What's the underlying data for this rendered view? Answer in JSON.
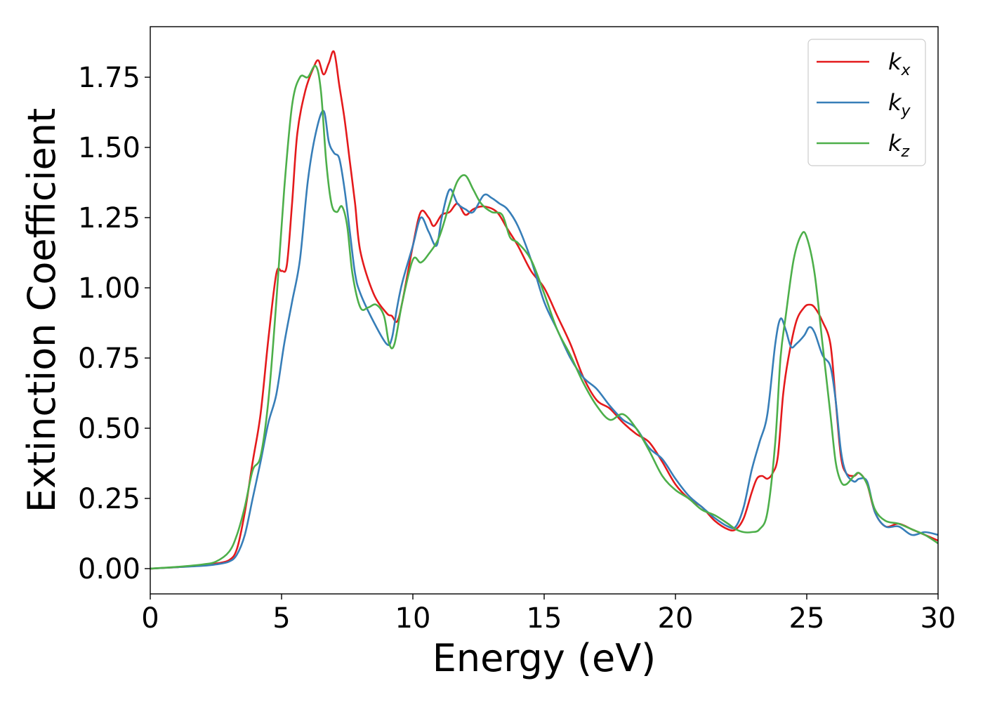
{
  "chart_data": {
    "type": "line",
    "xlabel": "Energy (eV)",
    "ylabel": "Extinction Coefficient",
    "xlim": [
      0,
      30
    ],
    "ylim": [
      -0.09,
      1.93
    ],
    "xticks": [
      0,
      5,
      10,
      15,
      20,
      25,
      30
    ],
    "xtick_labels": [
      "0",
      "5",
      "10",
      "15",
      "20",
      "25",
      "30"
    ],
    "yticks": [
      0.0,
      0.25,
      0.5,
      0.75,
      1.0,
      1.25,
      1.5,
      1.75
    ],
    "ytick_labels": [
      "0.00",
      "0.25",
      "0.50",
      "0.75",
      "1.00",
      "1.25",
      "1.50",
      "1.75"
    ],
    "grid": false,
    "legend_position": "top-right",
    "series": [
      {
        "name": "k",
        "subscript": "x",
        "color": "#e41a1c",
        "x": [
          0,
          1,
          2,
          2.5,
          3,
          3.3,
          3.6,
          3.9,
          4.2,
          4.5,
          4.8,
          5.0,
          5.2,
          5.4,
          5.6,
          5.9,
          6.2,
          6.4,
          6.6,
          6.8,
          7.0,
          7.2,
          7.4,
          7.6,
          7.8,
          8.0,
          8.5,
          9.0,
          9.2,
          9.4,
          9.6,
          10.0,
          10.3,
          10.6,
          10.8,
          11.1,
          11.4,
          11.7,
          12.0,
          12.3,
          12.7,
          13.2,
          13.6,
          14.0,
          14.5,
          15.0,
          15.5,
          16.0,
          16.5,
          17.0,
          17.5,
          18.0,
          18.5,
          19.0,
          19.5,
          20.0,
          20.5,
          21.0,
          21.5,
          22.0,
          22.3,
          22.6,
          22.9,
          23.1,
          23.3,
          23.5,
          23.7,
          23.9,
          24.1,
          24.3,
          24.6,
          24.9,
          25.1,
          25.3,
          25.6,
          25.9,
          26.1,
          26.3,
          26.5,
          26.8,
          27.0,
          27.3,
          27.6,
          28.0,
          28.5,
          29.0,
          29.5,
          30.0
        ],
        "values": [
          0.0,
          0.005,
          0.012,
          0.018,
          0.03,
          0.07,
          0.2,
          0.38,
          0.55,
          0.82,
          1.05,
          1.06,
          1.08,
          1.3,
          1.55,
          1.7,
          1.78,
          1.81,
          1.76,
          1.8,
          1.84,
          1.72,
          1.6,
          1.45,
          1.3,
          1.13,
          0.98,
          0.91,
          0.9,
          0.88,
          0.95,
          1.15,
          1.27,
          1.25,
          1.22,
          1.26,
          1.27,
          1.3,
          1.26,
          1.28,
          1.29,
          1.27,
          1.21,
          1.15,
          1.06,
          1.0,
          0.9,
          0.8,
          0.68,
          0.6,
          0.57,
          0.52,
          0.48,
          0.45,
          0.38,
          0.3,
          0.25,
          0.22,
          0.17,
          0.14,
          0.14,
          0.18,
          0.27,
          0.32,
          0.33,
          0.32,
          0.34,
          0.4,
          0.62,
          0.75,
          0.88,
          0.93,
          0.94,
          0.93,
          0.88,
          0.8,
          0.6,
          0.4,
          0.34,
          0.33,
          0.34,
          0.3,
          0.2,
          0.15,
          0.16,
          0.14,
          0.12,
          0.1
        ]
      },
      {
        "name": "k",
        "subscript": "y",
        "color": "#377eb8",
        "x": [
          0,
          1,
          2,
          2.5,
          3,
          3.3,
          3.6,
          3.9,
          4.2,
          4.5,
          4.8,
          5.1,
          5.4,
          5.7,
          6.0,
          6.3,
          6.6,
          6.8,
          7.0,
          7.2,
          7.4,
          7.6,
          7.8,
          8.0,
          8.5,
          9.0,
          9.2,
          9.4,
          9.6,
          10.0,
          10.3,
          10.6,
          10.9,
          11.1,
          11.4,
          11.7,
          12.0,
          12.3,
          12.7,
          13.0,
          13.3,
          13.6,
          14.0,
          14.5,
          15.0,
          15.5,
          16.0,
          16.5,
          17.0,
          17.5,
          18.0,
          18.5,
          19.0,
          19.5,
          20.0,
          20.5,
          21.0,
          21.5,
          22.0,
          22.3,
          22.6,
          22.9,
          23.2,
          23.5,
          23.8,
          24.0,
          24.2,
          24.4,
          24.6,
          24.9,
          25.1,
          25.3,
          25.6,
          25.9,
          26.1,
          26.3,
          26.5,
          26.8,
          27.0,
          27.3,
          27.6,
          28.0,
          28.5,
          29.0,
          29.5,
          30.0
        ],
        "values": [
          0.0,
          0.005,
          0.01,
          0.015,
          0.025,
          0.05,
          0.12,
          0.25,
          0.38,
          0.52,
          0.62,
          0.8,
          0.95,
          1.1,
          1.38,
          1.55,
          1.63,
          1.52,
          1.48,
          1.46,
          1.35,
          1.2,
          1.05,
          0.98,
          0.88,
          0.8,
          0.82,
          0.93,
          1.02,
          1.15,
          1.25,
          1.2,
          1.15,
          1.25,
          1.35,
          1.3,
          1.28,
          1.27,
          1.33,
          1.32,
          1.3,
          1.28,
          1.22,
          1.1,
          0.95,
          0.85,
          0.75,
          0.68,
          0.64,
          0.58,
          0.53,
          0.5,
          0.43,
          0.39,
          0.32,
          0.26,
          0.22,
          0.18,
          0.15,
          0.15,
          0.22,
          0.35,
          0.45,
          0.55,
          0.8,
          0.89,
          0.85,
          0.79,
          0.8,
          0.83,
          0.86,
          0.84,
          0.76,
          0.72,
          0.6,
          0.42,
          0.34,
          0.31,
          0.32,
          0.31,
          0.2,
          0.15,
          0.15,
          0.12,
          0.13,
          0.12
        ]
      },
      {
        "name": "k",
        "subscript": "z",
        "color": "#4daf4a",
        "x": [
          0,
          1,
          2,
          2.5,
          3,
          3.3,
          3.6,
          3.9,
          4.2,
          4.5,
          4.8,
          5.1,
          5.4,
          5.7,
          6.0,
          6.3,
          6.5,
          6.7,
          6.9,
          7.1,
          7.3,
          7.5,
          7.7,
          8.0,
          8.3,
          8.6,
          8.9,
          9.1,
          9.3,
          9.6,
          10.0,
          10.3,
          10.6,
          11.0,
          11.4,
          11.7,
          12.0,
          12.3,
          12.6,
          13.0,
          13.4,
          13.7,
          14.0,
          14.5,
          15.0,
          15.5,
          16.0,
          16.5,
          17.0,
          17.5,
          18.0,
          18.5,
          19.0,
          19.5,
          20.0,
          20.5,
          21.0,
          21.5,
          22.0,
          22.3,
          22.6,
          22.9,
          23.2,
          23.5,
          23.8,
          24.0,
          24.2,
          24.5,
          24.8,
          25.0,
          25.3,
          25.6,
          25.9,
          26.1,
          26.3,
          26.5,
          26.8,
          27.0,
          27.3,
          27.6,
          28.0,
          28.5,
          29.0,
          29.5,
          30.0
        ],
        "values": [
          0.0,
          0.006,
          0.015,
          0.025,
          0.06,
          0.12,
          0.22,
          0.35,
          0.4,
          0.6,
          0.95,
          1.35,
          1.65,
          1.75,
          1.75,
          1.79,
          1.7,
          1.45,
          1.3,
          1.27,
          1.29,
          1.22,
          1.05,
          0.93,
          0.93,
          0.94,
          0.9,
          0.8,
          0.8,
          0.95,
          1.1,
          1.09,
          1.12,
          1.18,
          1.3,
          1.38,
          1.4,
          1.35,
          1.3,
          1.27,
          1.26,
          1.18,
          1.16,
          1.1,
          0.98,
          0.85,
          0.76,
          0.66,
          0.58,
          0.53,
          0.55,
          0.5,
          0.42,
          0.33,
          0.28,
          0.25,
          0.21,
          0.19,
          0.16,
          0.14,
          0.13,
          0.13,
          0.14,
          0.2,
          0.45,
          0.75,
          0.9,
          1.1,
          1.19,
          1.18,
          1.05,
          0.8,
          0.55,
          0.38,
          0.31,
          0.3,
          0.33,
          0.34,
          0.3,
          0.21,
          0.17,
          0.16,
          0.14,
          0.12,
          0.09
        ]
      }
    ]
  }
}
